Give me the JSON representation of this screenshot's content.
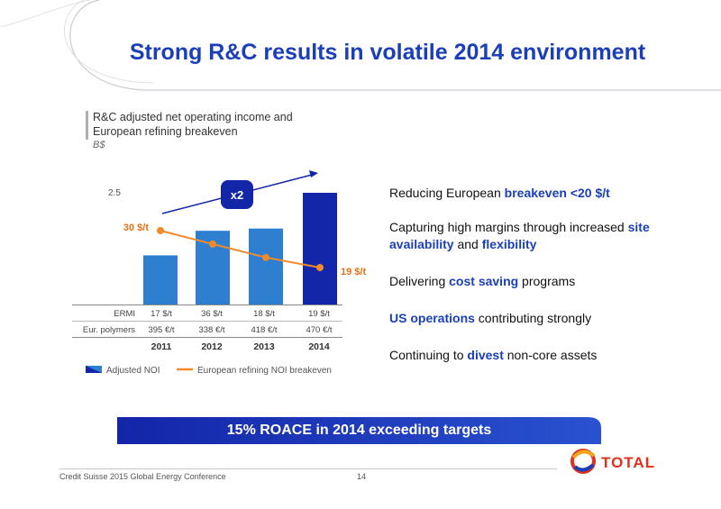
{
  "title": "Strong R&C results in volatile 2014 environment",
  "chart_header": {
    "title": "R&C adjusted net operating income and European refining breakeven",
    "unit": "B$"
  },
  "chart_data": {
    "type": "bar",
    "categories": [
      "2011",
      "2012",
      "2013",
      "2014"
    ],
    "series": [
      {
        "name": "Adjusted NOI",
        "type": "bar",
        "values": [
          1.1,
          1.65,
          1.7,
          2.5
        ]
      },
      {
        "name": "European refining NOI breakeven",
        "type": "line",
        "values": [
          30,
          26,
          22,
          19
        ]
      }
    ],
    "ylim": [
      0,
      2.5
    ],
    "ytick_labels": [
      "2.5"
    ],
    "line_labels": {
      "first": "30 $/t",
      "last": "19 $/t"
    },
    "multiplier_label": "x2",
    "legend": [
      "Adjusted NOI",
      "European refining NOI breakeven"
    ],
    "colors": {
      "bars": "#2f7fd1",
      "last_bar": "#1325a8",
      "line": "#f08a2a"
    }
  },
  "table": {
    "rows": [
      {
        "label": "ERMI",
        "values": [
          "17 $/t",
          "36 $/t",
          "18 $/t",
          "19 $/t"
        ]
      },
      {
        "label": "Eur. polymers",
        "values": [
          "395 €/t",
          "338 €/t",
          "418 €/t",
          "470 €/t"
        ]
      }
    ]
  },
  "bullets": [
    {
      "before": "Reducing European ",
      "highlight": "breakeven <20 $/t",
      "after": ""
    },
    {
      "before": "Capturing high margins through increased ",
      "highlight": "site availability",
      "middle": " and ",
      "highlight2": "flexibility",
      "after": ""
    },
    {
      "before": "Delivering ",
      "highlight": "cost saving",
      "after": " programs"
    },
    {
      "before": "",
      "highlight": "US operations",
      "after": " contributing strongly"
    },
    {
      "before": "Continuing to ",
      "highlight": "divest",
      "after": " non-core assets"
    }
  ],
  "banner": "15% ROACE in 2014 exceeding targets",
  "footer": {
    "left": "Credit Suisse 2015 Global Energy Conference",
    "page": "14"
  },
  "logo": "TOTAL",
  "colors": {
    "title": "#1a3fb8",
    "banner": "#1325a8",
    "accent_red": "#e0301e"
  }
}
